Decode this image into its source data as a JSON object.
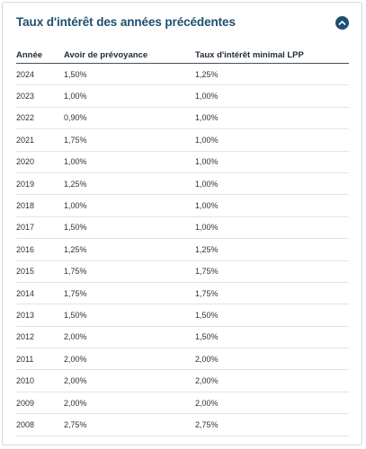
{
  "title": "Taux d'intérêt des années précédentes",
  "toggle_icon": "chevron-up-icon",
  "colors": {
    "title": "#1e4f70",
    "toggle_bg": "#1e4f70",
    "border": "#d3d8de"
  },
  "table": {
    "headers": [
      "Année",
      "Avoir de prévoyance",
      "Taux d'intérêt minimal LPP"
    ],
    "rows": [
      [
        "2024",
        "1,50%",
        "1,25%"
      ],
      [
        "2023",
        "1,00%",
        "1,00%"
      ],
      [
        "2022",
        "0,90%",
        "1,00%"
      ],
      [
        "2021",
        "1,75%",
        "1,00%"
      ],
      [
        "2020",
        "1,00%",
        "1,00%"
      ],
      [
        "2019",
        "1,25%",
        "1,00%"
      ],
      [
        "2018",
        "1,00%",
        "1,00%"
      ],
      [
        "2017",
        "1,50%",
        "1,00%"
      ],
      [
        "2016",
        "1,25%",
        "1,25%"
      ],
      [
        "2015",
        "1,75%",
        "1,75%"
      ],
      [
        "2014",
        "1,75%",
        "1,75%"
      ],
      [
        "2013",
        "1,50%",
        "1,50%"
      ],
      [
        "2012",
        "2,00%",
        "1,50%"
      ],
      [
        "2011",
        "2,00%",
        "2,00%"
      ],
      [
        "2010",
        "2,00%",
        "2,00%"
      ],
      [
        "2009",
        "2,00%",
        "2,00%"
      ],
      [
        "2008",
        "2,75%",
        "2,75%"
      ]
    ]
  }
}
